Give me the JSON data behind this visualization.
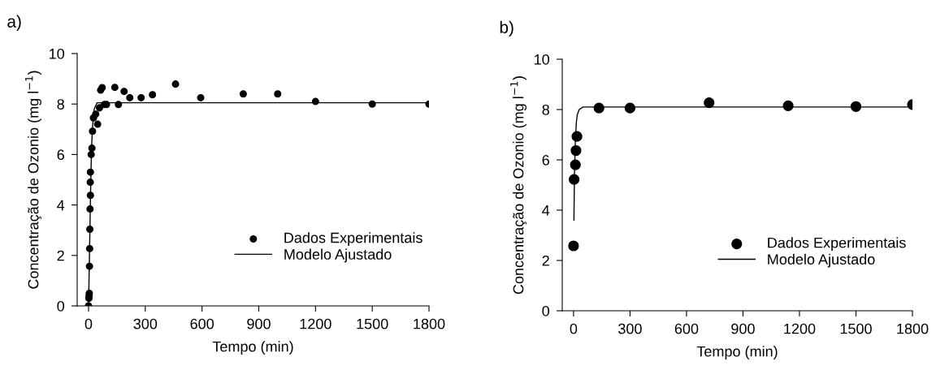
{
  "chart_data": [
    {
      "type": "scatter",
      "title": "a)",
      "xlabel": "Tempo (min)",
      "ylabel": "Concentração de Ozonio (mg l$^{−1}$)",
      "xlim": [
        -60,
        1800
      ],
      "xticks": [
        0,
        300,
        600,
        900,
        1200,
        1500,
        1800
      ],
      "ylim": [
        0,
        10
      ],
      "yticks": [
        0,
        2,
        4,
        6,
        8,
        10
      ],
      "grid": false,
      "legend": "lower right",
      "series": [
        {
          "name": "Dados Experimentais",
          "marker": "circle",
          "color": "#000000",
          "x": [
            0,
            2,
            3,
            4,
            5,
            6,
            7,
            8,
            10,
            9,
            10,
            14,
            18,
            21,
            26,
            38,
            48,
            58,
            64,
            72,
            84,
            95,
            139,
            158,
            188,
            218,
            278,
            338,
            460,
            593,
            818,
            1000,
            1200,
            1500,
            1800
          ],
          "values": [
            0,
            0.3,
            0.4,
            0.5,
            1.57,
            2.27,
            3.04,
            3.84,
            4.38,
            4.9,
            5.3,
            6.0,
            6.25,
            6.92,
            7.45,
            7.6,
            7.2,
            7.85,
            8.55,
            8.65,
            7.98,
            7.98,
            8.66,
            7.98,
            8.5,
            8.25,
            8.25,
            8.37,
            8.79,
            8.25,
            8.4,
            8.4,
            8.1,
            8.0,
            8.0
          ]
        },
        {
          "name": "Modelo Ajustado",
          "type": "line",
          "marker": "none",
          "color": "#000000",
          "x": [
            0,
            5,
            10,
            15,
            20,
            30,
            45,
            1800
          ],
          "values": [
            0,
            2,
            4.2,
            6,
            7,
            7.8,
            8.05,
            8.05
          ]
        }
      ]
    },
    {
      "type": "scatter",
      "title": "b)",
      "xlabel": "Tempo (min)",
      "ylabel": "Concentração de Ozonio (mg l$^{−1}$)",
      "xlim": [
        -60,
        1800
      ],
      "xticks": [
        0,
        300,
        600,
        900,
        1200,
        1500,
        1800
      ],
      "ylim": [
        0,
        10
      ],
      "yticks": [
        0,
        2,
        4,
        6,
        8,
        10
      ],
      "grid": false,
      "legend": "lower right",
      "series": [
        {
          "name": "Dados Experimentais",
          "marker": "circle",
          "color": "#000000",
          "x": [
            0,
            3,
            10,
            13,
            18,
            135,
            300,
            720,
            1140,
            1500,
            1800
          ],
          "values": [
            2.58,
            5.22,
            5.8,
            6.37,
            6.93,
            8.06,
            8.06,
            8.27,
            8.15,
            8.12,
            8.2
          ]
        },
        {
          "name": "Modelo Ajustado",
          "type": "line",
          "marker": "none",
          "color": "#000000",
          "x": [
            2,
            5,
            10,
            15,
            20,
            30,
            50,
            1800
          ],
          "values": [
            3.6,
            5.5,
            6.8,
            7.5,
            7.8,
            8.0,
            8.1,
            8.1
          ]
        }
      ]
    }
  ]
}
